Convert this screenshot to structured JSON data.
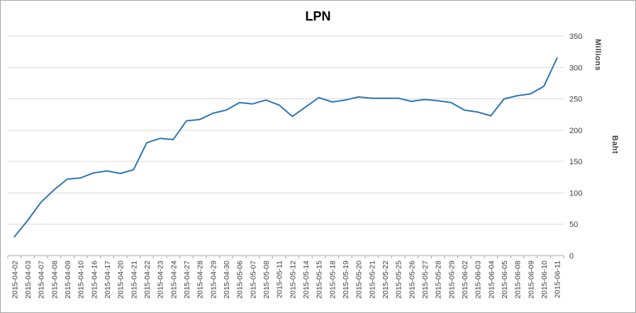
{
  "chart_data": {
    "type": "line",
    "title": "LPN",
    "y_unit_label": "Millions",
    "y_axis_title": "Baht",
    "y_axis_side": "right",
    "ylim": [
      0,
      350
    ],
    "ytick_interval": 50,
    "grid": true,
    "legend": "none",
    "x_label_rotation": -90,
    "categories": [
      "2015-04-02",
      "2015-04-03",
      "2015-04-07",
      "2015-04-08",
      "2015-04-09",
      "2015-04-10",
      "2015-04-16",
      "2015-04-17",
      "2015-04-20",
      "2015-04-21",
      "2015-04-22",
      "2015-04-23",
      "2015-04-24",
      "2015-04-27",
      "2015-04-28",
      "2015-04-29",
      "2015-04-30",
      "2015-05-06",
      "2015-05-07",
      "2015-05-08",
      "2015-05-11",
      "2015-05-12",
      "2015-05-14",
      "2015-05-15",
      "2015-05-18",
      "2015-05-19",
      "2015-05-20",
      "2015-05-21",
      "2015-05-22",
      "2015-05-25",
      "2015-05-26",
      "2015-05-27",
      "2015-05-28",
      "2015-05-29",
      "2015-06-02",
      "2015-06-03",
      "2015-06-04",
      "2015-06-05",
      "2015-06-08",
      "2015-06-09",
      "2015-06-10",
      "2015-06-11"
    ],
    "series": [
      {
        "name": "LPN",
        "color": "#2e75b6",
        "values": [
          30,
          56,
          85,
          105,
          122,
          124,
          132,
          135,
          131,
          137,
          180,
          187,
          185,
          215,
          217,
          227,
          232,
          244,
          242,
          248,
          240,
          222,
          237,
          252,
          245,
          248,
          253,
          251,
          251,
          251,
          246,
          249,
          247,
          244,
          232,
          229,
          223,
          250,
          255,
          258,
          270,
          315
        ]
      }
    ]
  },
  "colors": {
    "line": "#2e75b6",
    "gridline": "#d9d9d9",
    "axis": "#a6a6a6",
    "border": "#a6a6a6",
    "text": "#404040",
    "title": "#000000",
    "background": "#ffffff"
  }
}
